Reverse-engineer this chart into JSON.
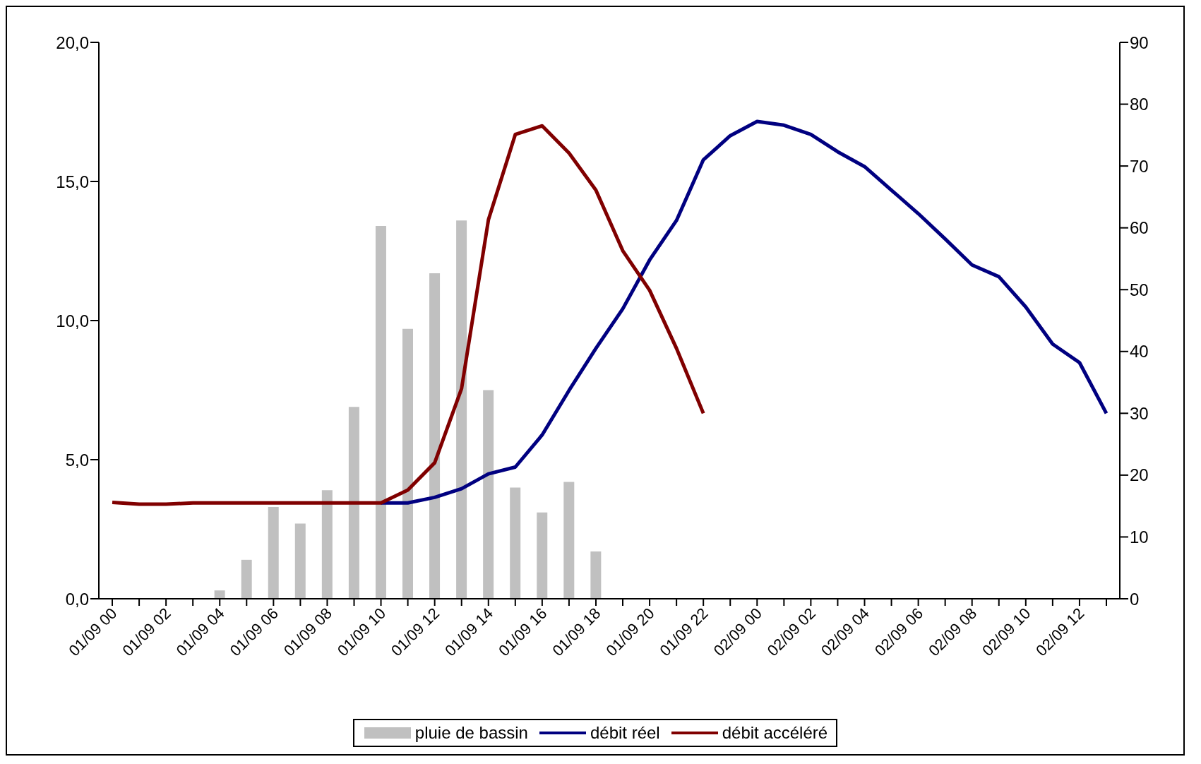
{
  "chart_data": {
    "type": "bar",
    "categories": [
      "01/09 00",
      null,
      "01/09 02",
      null,
      "01/09 04",
      null,
      "01/09 06",
      null,
      "01/09 08",
      null,
      "01/09 10",
      null,
      "01/09 12",
      null,
      "01/09 14",
      null,
      "01/09 16",
      null,
      "01/09 18",
      null,
      "01/09 20",
      null,
      "01/09 22",
      null,
      "02/09 00",
      null,
      "02/09 02",
      null,
      "02/09 04",
      null,
      "02/09 06",
      null,
      "02/09 08",
      null,
      "02/09 10",
      null,
      "02/09 12",
      null
    ],
    "series": [
      {
        "name": "pluie de bassin",
        "color": "#c0c0c0",
        "values": [
          null,
          null,
          null,
          null,
          0.3,
          1.4,
          3.3,
          2.7,
          3.9,
          6.9,
          13.4,
          9.7,
          11.7,
          13.6,
          7.5,
          4.0,
          3.1,
          4.2,
          1.7,
          null,
          null,
          null,
          null,
          null,
          null,
          null,
          null,
          null,
          null,
          null,
          null,
          null,
          null,
          null,
          null,
          null,
          null,
          null
        ]
      },
      {
        "name": "débit réel",
        "type": "line",
        "axis": "y2",
        "color": "#000080",
        "values": [
          null,
          null,
          null,
          null,
          null,
          null,
          null,
          null,
          null,
          null,
          15.5,
          15.5,
          16.4,
          17.8,
          20.2,
          21.3,
          26.5,
          33.7,
          40.5,
          46.9,
          54.8,
          61.2,
          71,
          74.9,
          77.2,
          76.6,
          75.1,
          72.3,
          69.9,
          66.1,
          62.3,
          58.2,
          54,
          52.1,
          47.2,
          41.2,
          38.2,
          30
        ]
      },
      {
        "name": "débit accéléré",
        "type": "line",
        "axis": "y2",
        "color": "#800000",
        "values": [
          15.6,
          15.3,
          15.3,
          15.5,
          15.5,
          15.5,
          15.5,
          15.5,
          15.5,
          15.5,
          15.5,
          17.6,
          22,
          34,
          61.3,
          75.1,
          76.5,
          72.1,
          66.1,
          56.3,
          49.9,
          40.5,
          30,
          null,
          null,
          null,
          null,
          null,
          null,
          null,
          null,
          null,
          null,
          null,
          null,
          null,
          null,
          null
        ]
      }
    ],
    "ylim": [
      0,
      20
    ],
    "yticks": [
      {
        "value": 0,
        "label": "0,0"
      },
      {
        "value": 5,
        "label": "5,0"
      },
      {
        "value": 10,
        "label": "10,0"
      },
      {
        "value": 15,
        "label": "15,0"
      },
      {
        "value": 20,
        "label": "20,0"
      }
    ],
    "y2lim": [
      0,
      90
    ],
    "y2ticks": [
      0,
      10,
      20,
      30,
      40,
      50,
      60,
      70,
      80,
      90
    ],
    "grid": false,
    "legend": "bottom",
    "marker": "none",
    "line_style": "solid"
  }
}
